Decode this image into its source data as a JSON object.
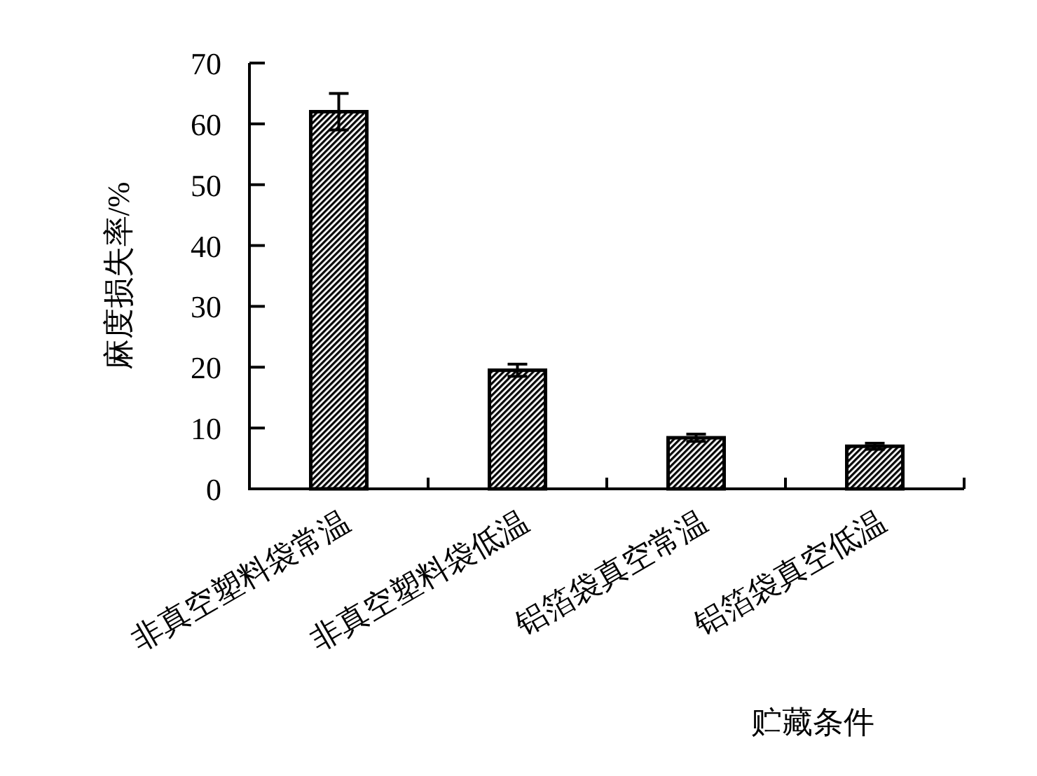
{
  "chart_data": {
    "type": "bar",
    "xlabel": "贮藏条件",
    "ylabel": "麻度损失率/%",
    "categories": [
      "非真空塑料袋常温",
      "非真空塑料袋低温",
      "铝箔袋真空常温",
      "铝箔袋真空低温"
    ],
    "values": [
      62,
      19.5,
      8.4,
      7
    ],
    "errors": [
      3,
      1,
      0.6,
      0.5
    ],
    "color": "#000000",
    "ylim": [
      0,
      70
    ],
    "yticks": [
      0,
      10,
      20,
      30,
      40,
      50,
      60,
      70
    ],
    "grid": false
  }
}
